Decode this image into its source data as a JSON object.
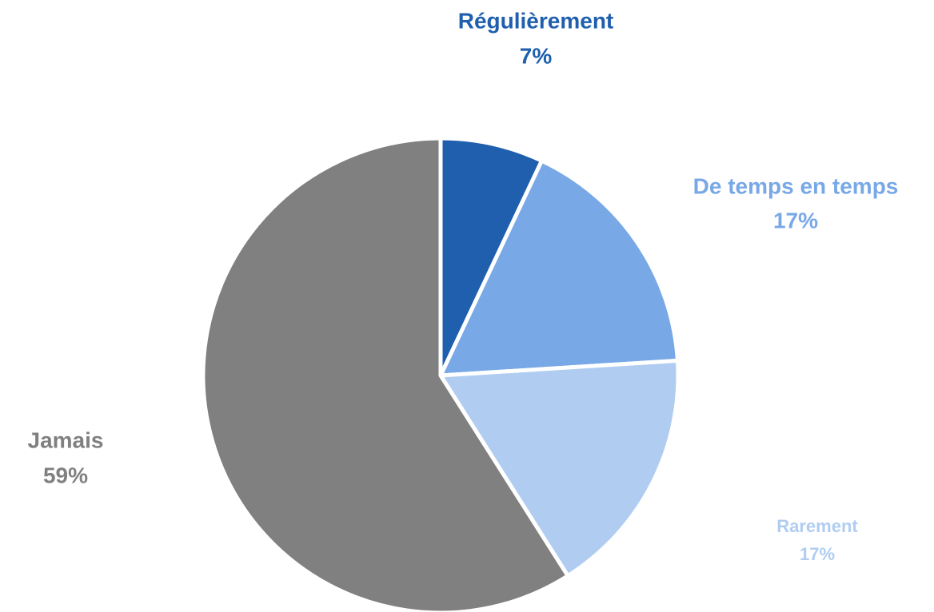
{
  "chart_data": {
    "type": "pie",
    "categories": [
      "Régulièrement",
      "De temps en temps",
      "Rarement",
      "Jamais"
    ],
    "values": [
      7,
      17,
      17,
      59
    ],
    "value_labels": [
      "7%",
      "17%",
      "17%",
      "59%"
    ],
    "colors": [
      "#1f5fad",
      "#78a8e6",
      "#b0cdf1",
      "#808080"
    ]
  }
}
